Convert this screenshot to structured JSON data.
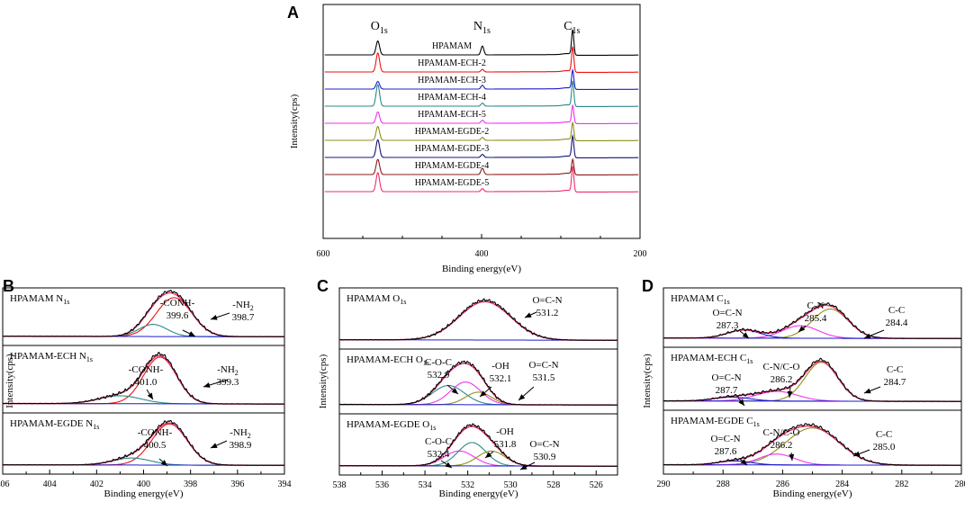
{
  "chart_data": [
    {
      "panel": "A",
      "type": "line",
      "xlabel": "Binding energy(eV)",
      "ylabel": "Intensity(cps)",
      "xlim": [
        600,
        200
      ],
      "xticks": [
        "600",
        "400",
        "200"
      ],
      "peak_labels": [
        {
          "base": "O",
          "sub": "1s",
          "x": 531
        },
        {
          "base": "N",
          "sub": "1s",
          "x": 399
        },
        {
          "base": "C",
          "sub": "1s",
          "x": 285
        }
      ],
      "series": [
        {
          "name": "HPAMAM",
          "color": "#000000",
          "peaks": [
            0.55,
            0.35,
            1.0
          ]
        },
        {
          "name": "HPAMAM-ECH-2",
          "color": "#ee1111",
          "peaks": [
            0.75,
            0.1,
            1.0
          ]
        },
        {
          "name": "HPAMAM-ECH-3",
          "color": "#1c1ccc",
          "peaks": [
            0.3,
            0.15,
            0.75
          ]
        },
        {
          "name": "HPAMAM-ECH-4",
          "color": "#2a8a8a",
          "peaks": [
            0.85,
            0.12,
            1.0
          ]
        },
        {
          "name": "HPAMAM-ECH-5",
          "color": "#ee33ee",
          "peaks": [
            0.45,
            0.12,
            0.7
          ]
        },
        {
          "name": "HPAMAM-EGDE-2",
          "color": "#8f8f1a",
          "peaks": [
            0.55,
            0.12,
            0.7
          ]
        },
        {
          "name": "HPAMAM-EGDE-3",
          "color": "#14147a",
          "peaks": [
            0.7,
            0.12,
            0.85
          ]
        },
        {
          "name": "HPAMAM-EGDE-4",
          "color": "#8a1a1a",
          "peaks": [
            0.6,
            0.25,
            0.6
          ]
        },
        {
          "name": "HPAMAM-EGDE-5",
          "color": "#ee2c6a",
          "peaks": [
            0.75,
            0.12,
            1.0
          ]
        }
      ]
    },
    {
      "panel": "B",
      "type": "line",
      "xlabel": "Binding energy(eV)",
      "ylabel": "Intensity(cps)",
      "xlim": [
        406,
        394
      ],
      "xticks": [
        "406",
        "404",
        "402",
        "400",
        "398",
        "396",
        "394"
      ],
      "subpanels": [
        {
          "title": "HPAMAM N",
          "title_sub": "1s",
          "components": [
            {
              "center": 398.7,
              "height": 0.9,
              "width": 0.75,
              "color": "#ee1111"
            },
            {
              "center": 399.6,
              "height": 0.28,
              "width": 0.6,
              "color": "#2a8a8a"
            }
          ],
          "annotations": [
            {
              "lines": [
                "-CONH-",
                "399.6"
              ],
              "peak": 399.6
            },
            {
              "lines": [
                "-NH",
                "398.7"
              ],
              "sub": "2",
              "peak": 398.7
            }
          ]
        },
        {
          "title": "HPAMAM-ECH N",
          "title_sub": "1s",
          "components": [
            {
              "center": 399.3,
              "height": 0.88,
              "width": 0.7,
              "color": "#ee1111"
            },
            {
              "center": 401.0,
              "height": 0.15,
              "width": 0.9,
              "color": "#2a8a8a"
            }
          ],
          "annotations": [
            {
              "lines": [
                "-CONH-",
                "401.0"
              ],
              "peak": 401.0
            },
            {
              "lines": [
                "-NH",
                "399.3"
              ],
              "sub": "2",
              "peak": 399.3
            }
          ]
        },
        {
          "title": "HPAMAM-EGDE N",
          "title_sub": "1s",
          "components": [
            {
              "center": 398.9,
              "height": 0.88,
              "width": 0.75,
              "color": "#ee1111"
            },
            {
              "center": 400.5,
              "height": 0.15,
              "width": 0.8,
              "color": "#2a8a8a"
            }
          ],
          "annotations": [
            {
              "lines": [
                "-CONH-",
                "400.5"
              ],
              "peak": 400.5
            },
            {
              "lines": [
                "-NH",
                "398.9"
              ],
              "sub": "2",
              "peak": 398.9
            }
          ]
        }
      ]
    },
    {
      "panel": "C",
      "type": "line",
      "xlabel": "Binding energy(eV)",
      "ylabel": "Intensity(cps)",
      "xlim": [
        538,
        525
      ],
      "xticks": [
        "538",
        "536",
        "534",
        "532",
        "530",
        "528",
        "526"
      ],
      "subpanels": [
        {
          "title": "HPAMAM O",
          "title_sub": "1s",
          "components": [
            {
              "center": 531.2,
              "height": 0.82,
              "width": 1.2,
              "color": "#2a8a8a"
            }
          ],
          "annotations": [
            {
              "lines": [
                "O=C-N",
                "531.2"
              ],
              "peak": 531.2
            }
          ]
        },
        {
          "title": "HPAMAM-ECH O",
          "title_sub": "1s",
          "components": [
            {
              "center": 532.9,
              "height": 0.38,
              "width": 0.75,
              "color": "#2a8a8a"
            },
            {
              "center": 532.1,
              "height": 0.45,
              "width": 0.7,
              "color": "#ee33ee"
            },
            {
              "center": 531.5,
              "height": 0.25,
              "width": 0.6,
              "color": "#8f8f1a"
            }
          ],
          "annotations": [
            {
              "lines": [
                "C-O-C",
                "532.9"
              ],
              "peak": 532.9
            },
            {
              "lines": [
                "-OH",
                "532.1"
              ],
              "peak": 532.1
            },
            {
              "lines": [
                "O=C-N",
                "531.5"
              ],
              "peak": 531.5
            }
          ]
        },
        {
          "title": "HPAMAM-EGDE O",
          "title_sub": "1s",
          "components": [
            {
              "center": 532.4,
              "height": 0.32,
              "width": 0.7,
              "color": "#ee33ee"
            },
            {
              "center": 531.8,
              "height": 0.5,
              "width": 0.65,
              "color": "#2a8a8a"
            },
            {
              "center": 530.9,
              "height": 0.32,
              "width": 0.65,
              "color": "#8f8f1a"
            }
          ],
          "annotations": [
            {
              "lines": [
                "C-O-C",
                "532.4"
              ],
              "peak": 532.4
            },
            {
              "lines": [
                "-OH",
                "531.8"
              ],
              "peak": 531.8
            },
            {
              "lines": [
                "O=C-N",
                "530.9"
              ],
              "peak": 530.9
            }
          ]
        }
      ]
    },
    {
      "panel": "D",
      "type": "line",
      "xlabel": "Binding energy(eV)",
      "ylabel": "Intensity(cps)",
      "xlim": [
        290,
        280
      ],
      "xticks": [
        "290",
        "288",
        "286",
        "284",
        "282",
        "280"
      ],
      "subpanels": [
        {
          "title": "HPAMAM C",
          "title_sub": "1s",
          "components": [
            {
              "center": 284.4,
              "height": 0.65,
              "width": 0.6,
              "color": "#8f8f1a"
            },
            {
              "center": 285.4,
              "height": 0.28,
              "width": 0.6,
              "color": "#ee33ee"
            },
            {
              "center": 287.3,
              "height": 0.18,
              "width": 0.55,
              "color": "#1c1ccc"
            }
          ],
          "annotations": [
            {
              "lines": [
                "O=C-N",
                "287.3"
              ],
              "peak": 287.3
            },
            {
              "lines": [
                "C-N",
                "285.4"
              ],
              "peak": 285.4
            },
            {
              "lines": [
                "C-C",
                "284.4"
              ],
              "peak": 284.4
            }
          ]
        },
        {
          "title": "HPAMAM-ECH C",
          "title_sub": "1s",
          "components": [
            {
              "center": 284.7,
              "height": 0.8,
              "width": 0.55,
              "color": "#8f8f1a"
            },
            {
              "center": 286.2,
              "height": 0.2,
              "width": 0.7,
              "color": "#ee33ee"
            },
            {
              "center": 287.7,
              "height": 0.08,
              "width": 0.6,
              "color": "#1c1ccc"
            }
          ],
          "annotations": [
            {
              "lines": [
                "O=C-N",
                "287.7"
              ],
              "peak": 287.7
            },
            {
              "lines": [
                "C-N/C-O",
                "286.2"
              ],
              "peak": 286.2
            },
            {
              "lines": [
                "C-C",
                "284.7"
              ],
              "peak": 284.7
            }
          ]
        },
        {
          "title": "HPAMAM-EGDE C",
          "title_sub": "1s",
          "components": [
            {
              "center": 285.0,
              "height": 0.75,
              "width": 0.9,
              "color": "#8f8f1a"
            },
            {
              "center": 286.2,
              "height": 0.22,
              "width": 0.6,
              "color": "#ee33ee"
            },
            {
              "center": 287.6,
              "height": 0.08,
              "width": 0.55,
              "color": "#1c1ccc"
            }
          ],
          "annotations": [
            {
              "lines": [
                "O=C-N",
                "287.6"
              ],
              "peak": 287.6
            },
            {
              "lines": [
                "C-N/C-O",
                "286.2"
              ],
              "peak": 286.2
            },
            {
              "lines": [
                "C-C",
                "285.0"
              ],
              "peak": 285.0
            }
          ]
        }
      ]
    }
  ]
}
